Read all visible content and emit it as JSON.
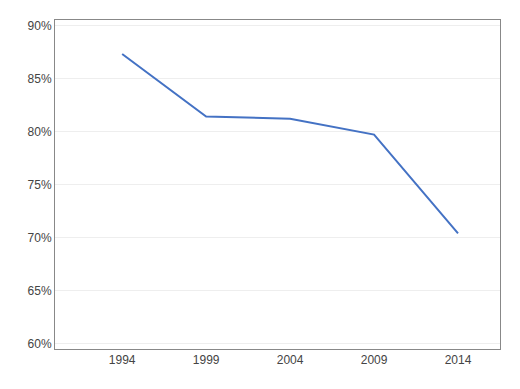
{
  "chart_data": {
    "type": "line",
    "x": [
      1994,
      1999,
      2004,
      2009,
      2014
    ],
    "values": [
      0.873,
      0.814,
      0.812,
      0.797,
      0.704
    ],
    "color": "#4472C4",
    "xlim": [
      1990,
      2016.5
    ],
    "xticks": [
      1994,
      1999,
      2004,
      2009,
      2014
    ],
    "ylim": [
      0.595,
      0.905
    ],
    "yticks": [
      {
        "value": 0.6,
        "label": "60%"
      },
      {
        "value": 0.65,
        "label": "65%"
      },
      {
        "value": 0.7,
        "label": "70%"
      },
      {
        "value": 0.75,
        "label": "75%"
      },
      {
        "value": 0.8,
        "label": "80%"
      },
      {
        "value": 0.85,
        "label": "85%"
      },
      {
        "value": 0.9,
        "label": "90%"
      }
    ],
    "grid": true
  }
}
